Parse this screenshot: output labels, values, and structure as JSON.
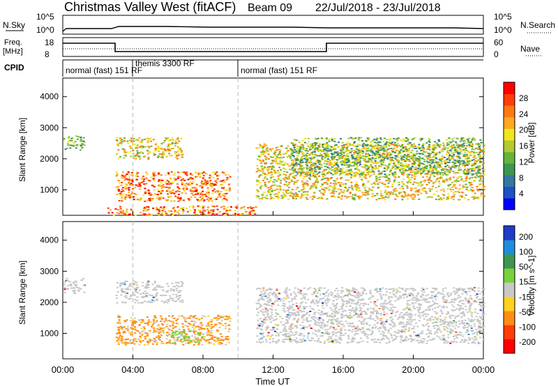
{
  "header": {
    "station": "Christmas Valley West (fitACF)",
    "beam": "Beam 09",
    "date_range": "22/Jul/2018 - 23/Jul/2018"
  },
  "noise_panel": {
    "left_label": "N.Sky",
    "right_label": "N.Search",
    "left_ticks": [
      "10^5",
      "10^0"
    ],
    "right_ticks": [
      "10^5",
      "10^0"
    ]
  },
  "freq_panel": {
    "left_label_line1": "Freq.",
    "left_label_line2": "[MHz]",
    "right_label": "Nave",
    "left_ticks": [
      "18",
      "8"
    ],
    "right_ticks": [
      "60",
      "0"
    ]
  },
  "cpid": {
    "label": "CPID",
    "segments": [
      {
        "start_hour": 0,
        "label": "normal (fast) 151 RF"
      },
      {
        "start_hour": 4,
        "label": "themis 3300 RF"
      },
      {
        "start_hour": 10,
        "label": "normal (fast) 151 RF"
      }
    ]
  },
  "chart_data": [
    {
      "type": "heatmap",
      "title": "",
      "ylabel": "Slant Range [km]",
      "yticks": [
        "1000",
        "2000",
        "3000",
        "4000"
      ],
      "ylim": [
        180,
        4600
      ],
      "xlim": [
        0,
        24
      ],
      "colorbar": {
        "label": "Power [dB]",
        "ticks": [
          "4",
          "8",
          "12",
          "16",
          "20",
          "24",
          "28"
        ],
        "colors": [
          "#0000ff",
          "#1e50c8",
          "#3278a0",
          "#3c9650",
          "#64b43c",
          "#b4c832",
          "#f0e61e",
          "#ffaa1e",
          "#ff7814",
          "#ff3c0a",
          "#ff0000"
        ]
      },
      "regions": [
        {
          "name": "early-band",
          "x": [
            0.0,
            1.2
          ],
          "y": [
            2300,
            2800
          ],
          "level": "mid"
        },
        {
          "name": "afternoon-upper",
          "x": [
            3.0,
            6.8
          ],
          "y": [
            2000,
            2700
          ],
          "level": "high"
        },
        {
          "name": "main-band",
          "x": [
            3.0,
            9.5
          ],
          "y": [
            650,
            1600
          ],
          "level": "very-high"
        },
        {
          "name": "ground-scatter",
          "x": [
            2.5,
            11.0
          ],
          "y": [
            200,
            500
          ],
          "level": "very-high"
        },
        {
          "name": "post-midnight",
          "x": [
            11.0,
            24.0
          ],
          "y": [
            700,
            2500
          ],
          "level": "high"
        },
        {
          "name": "late-upper",
          "x": [
            13.0,
            24.0
          ],
          "y": [
            1500,
            2700
          ],
          "level": "mid"
        }
      ]
    },
    {
      "type": "heatmap",
      "title": "",
      "ylabel": "Slant Range [km]",
      "xlabel": "Time UT",
      "xticks": [
        "00:00",
        "04:00",
        "08:00",
        "12:00",
        "16:00",
        "20:00",
        "00:00"
      ],
      "yticks": [
        "1000",
        "2000",
        "3000",
        "4000"
      ],
      "ylim": [
        180,
        4600
      ],
      "xlim": [
        0,
        24
      ],
      "colorbar": {
        "label": "Velocity [m s^-1]",
        "ticks": [
          "200",
          "100",
          "50",
          "15",
          "-15",
          "-50",
          "-100",
          "-200"
        ],
        "colors": [
          "#1e3cc8",
          "#1e8cdc",
          "#3c9650",
          "#78d23c",
          "#c8c8c8",
          "#ffd21e",
          "#ff8c14",
          "#ff3c0a",
          "#ff0000"
        ]
      },
      "regions": [
        {
          "name": "early-band",
          "x": [
            0.0,
            1.2
          ],
          "y": [
            2300,
            2800
          ],
          "velocity": "ground"
        },
        {
          "name": "afternoon-upper",
          "x": [
            3.0,
            6.8
          ],
          "y": [
            2000,
            2700
          ],
          "velocity": "ground"
        },
        {
          "name": "main-band",
          "x": [
            3.0,
            9.5
          ],
          "y": [
            650,
            1600
          ],
          "velocity": "-50"
        },
        {
          "name": "green-patch",
          "x": [
            6.0,
            8.0
          ],
          "y": [
            700,
            1100
          ],
          "velocity": "15"
        },
        {
          "name": "post-midnight",
          "x": [
            11.0,
            24.0
          ],
          "y": [
            700,
            2500
          ],
          "velocity": "ground"
        }
      ]
    }
  ],
  "x_axis": {
    "label": "Time UT",
    "ticks": [
      "00:00",
      "04:00",
      "08:00",
      "12:00",
      "16:00",
      "20:00",
      "00:00"
    ]
  }
}
